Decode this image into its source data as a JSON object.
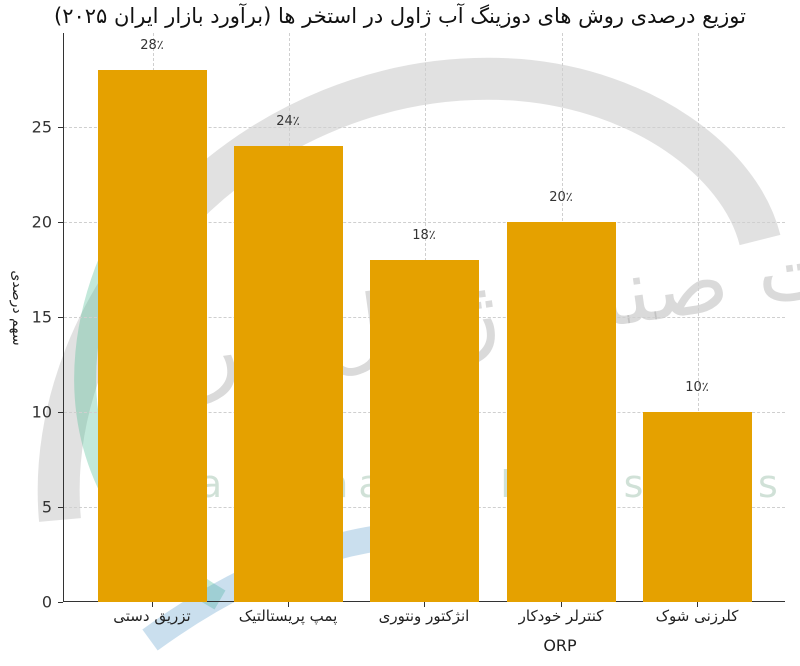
{
  "chart_data": {
    "type": "bar",
    "title": "توزیع درصدی روش های دوزینگ آب ژاول در استخر ها (برآورد بازار ایران ۲۰۲۵)",
    "xlabel": "ORP",
    "ylabel": "سهم درصدی",
    "categories": [
      "تزریق دستی",
      "پمپ پریستالتیک",
      "انژکتور ونتوری",
      "کنترلر خودکار",
      "کلرزنی شوک"
    ],
    "values": [
      28,
      24,
      18,
      20,
      10
    ],
    "data_labels": [
      "28٪",
      "24٪",
      "18٪",
      "20٪",
      "10٪"
    ],
    "yticks": [
      "0",
      "5",
      "10",
      "15",
      "20",
      "25"
    ],
    "ylim": [
      0,
      30
    ],
    "grid": true,
    "bar_color": "#E5A100",
    "legend": null
  },
  "watermark": {
    "text_en": "Iran Zhavel Industries Co",
    "text_fa": "شرکت صنایع ژاول ایران"
  }
}
